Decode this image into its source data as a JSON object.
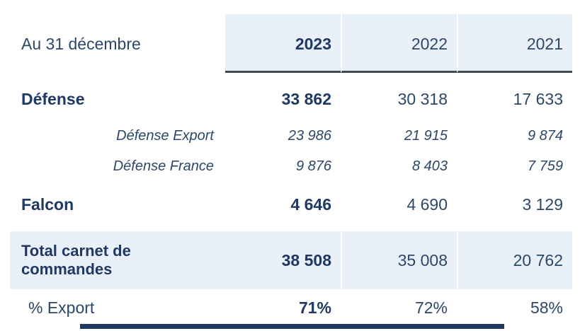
{
  "colors": {
    "accent_bg": "#EAF0F8",
    "text": "#2D4768",
    "bold_text": "#1F3864",
    "rule": "#3F4A54",
    "bar": "#1F3864",
    "page_bg": "#FFFFFF"
  },
  "table": {
    "caption": "Au 31 décembre",
    "years": [
      "2023",
      "2022",
      "2021"
    ],
    "rows": [
      {
        "label": "Défense",
        "values": [
          "33 862",
          "30 318",
          "17 633"
        ]
      },
      {
        "label": "Défense Export",
        "values": [
          "23 986",
          "21 915",
          "9 874"
        ]
      },
      {
        "label": "Défense France",
        "values": [
          "9 876",
          "8 403",
          "7 759"
        ]
      },
      {
        "label": "Falcon",
        "values": [
          "4 646",
          "4 690",
          "3 129"
        ]
      },
      {
        "label": "Total carnet de commandes",
        "values": [
          "38 508",
          "35 008",
          "20 762"
        ]
      },
      {
        "label": "% Export",
        "values": [
          "71%",
          "72%",
          "58%"
        ]
      }
    ]
  },
  "chart_data": {
    "type": "table",
    "title": "Au 31 décembre",
    "columns": [
      "",
      "2023",
      "2022",
      "2021"
    ],
    "rows": [
      [
        "Défense",
        "33 862",
        "30 318",
        "17 633"
      ],
      [
        "Défense Export",
        "23 986",
        "21 915",
        "9 874"
      ],
      [
        "Défense France",
        "9 876",
        "8 403",
        "7 759"
      ],
      [
        "Falcon",
        "4 646",
        "4 690",
        "3 129"
      ],
      [
        "Total carnet de commandes",
        "38 508",
        "35 008",
        "20 762"
      ],
      [
        "% Export",
        "71%",
        "72%",
        "58%"
      ]
    ]
  }
}
